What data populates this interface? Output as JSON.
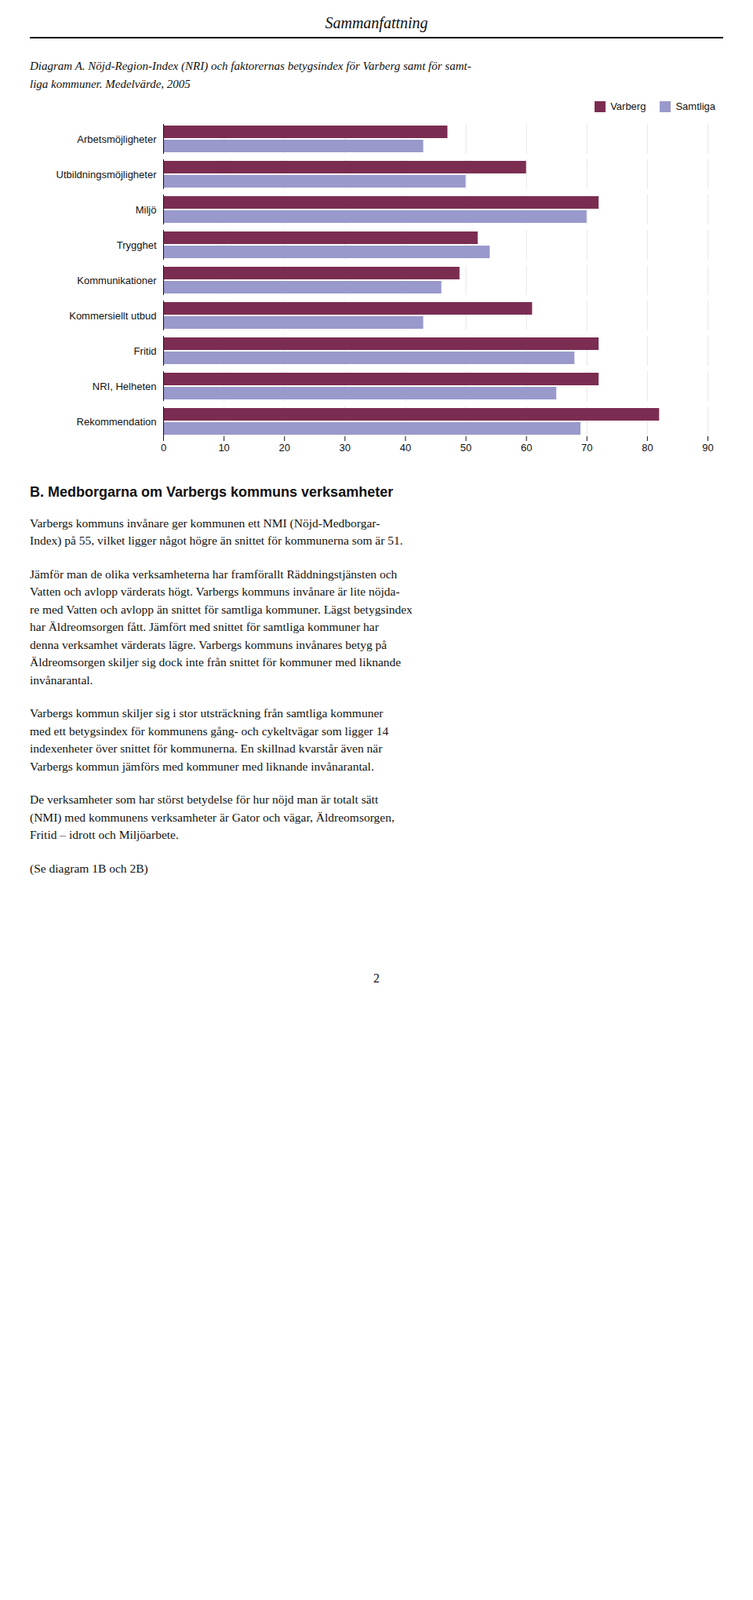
{
  "title": "Sammanfattning",
  "chart_data": {
    "type": "bar",
    "orientation": "horizontal",
    "title": "Diagram A. Nöjd-Region-Index (NRI) och faktorernas betygsindex för Varberg samt för samt-\nliga kommuner. Medelvärde, 2005",
    "categories": [
      "Arbetsmöjligheter",
      "Utbildningsmöjligheter",
      "Miljö",
      "Trygghet",
      "Kommunikationer",
      "Kommersiellt utbud",
      "Fritid",
      "NRI, Helheten",
      "Rekommendation"
    ],
    "series": [
      {
        "name": "Varberg",
        "color": "#7B2D51",
        "values": [
          47,
          60,
          72,
          52,
          49,
          61,
          72,
          72,
          82
        ]
      },
      {
        "name": "Samtliga",
        "color": "#9999CC",
        "values": [
          43,
          50,
          70,
          54,
          46,
          43,
          68,
          65,
          69
        ]
      }
    ],
    "xlim": [
      0,
      90
    ],
    "xticks": [
      0,
      10,
      20,
      30,
      40,
      50,
      60,
      70,
      80,
      90
    ],
    "grid": true,
    "legend": "upper right"
  },
  "section": {
    "title": "B. Medborgarna om Varbergs kommuns verksamheter",
    "paragraphs": [
      "Varbergs kommuns invånare ger kommunen ett NMI (Nöjd-Medborgar-\nIndex) på 55, vilket ligger något högre än snittet för kommunerna som är 51.",
      "Jämför man de olika verksamheterna har framförallt Räddningstjänsten och\nVatten och avlopp värderats högt. Varbergs kommuns invånare är lite nöjda-\nre med Vatten och avlopp än snittet för samtliga kommuner. Lägst betygsindex\nhar Äldreomsorgen fått. Jämfört med snittet för samtliga kommuner har\ndenna verksamhet värderats lägre. Varbergs kommuns invånares betyg på\nÄldreomsorgen skiljer sig dock inte från snittet för kommuner med liknande\ninvånarantal.",
      "Varbergs kommun skiljer sig i stor utsträckning från samtliga kommuner\nmed ett betygsindex för kommunens gång- och cykeltvägar som ligger 14\nindexenheter över snittet för kommunerna. En skillnad kvarstår även när\nVarbergs kommun jämförs med kommuner med liknande invånarantal.",
      "De verksamheter som har störst betydelse för hur nöjd man är totalt sätt\n(NMI) med kommunens verksamheter är Gator och vägar, Äldreomsorgen,\nFritid – idrott och Miljöarbete.",
      "(Se diagram 1B och 2B)"
    ]
  },
  "page_number": "2"
}
